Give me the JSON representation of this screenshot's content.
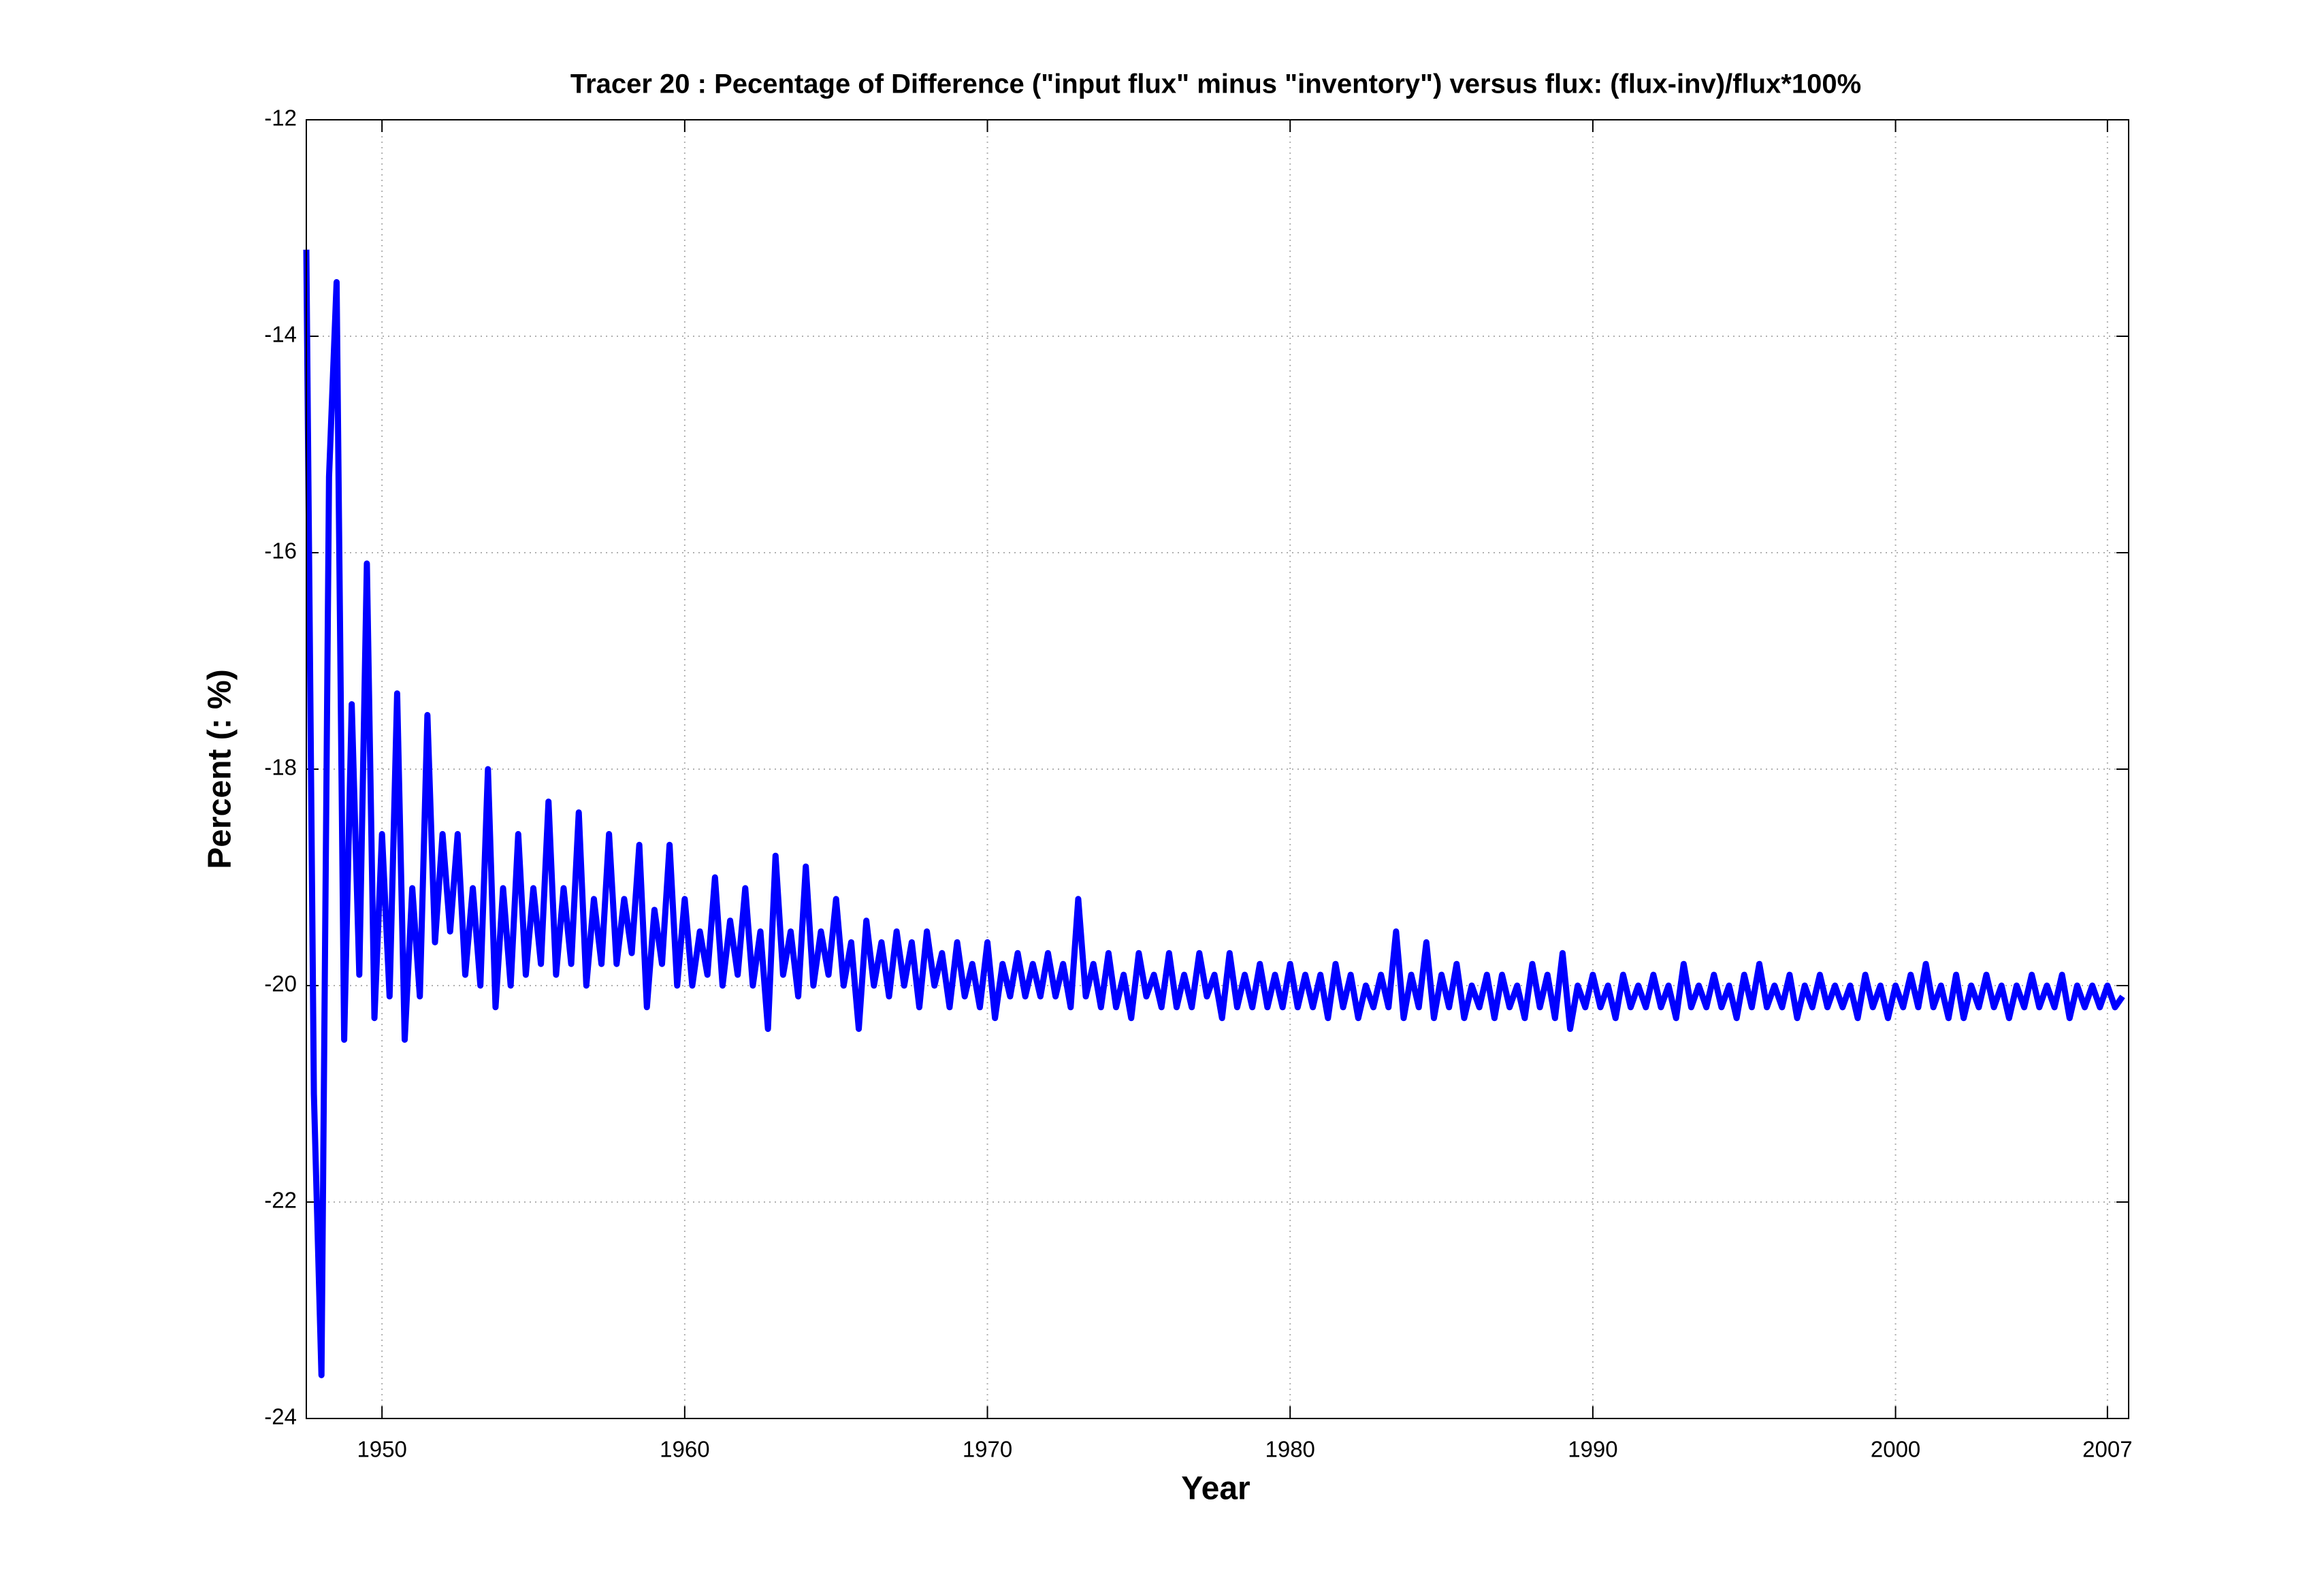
{
  "chart_data": {
    "type": "line",
    "title": "Tracer 20 : Pecentage of Difference (\"input flux\" minus \"inventory\") versus flux: (flux-inv)/flux*100%",
    "xlabel": "Year",
    "ylabel": "Percent (: %)",
    "xlim": [
      1947.5,
      2007.7
    ],
    "xticks": [
      1950,
      1960,
      1970,
      1980,
      1990,
      2000,
      2007
    ],
    "ylim": [
      -24,
      -12
    ],
    "yticks": [
      -24,
      -22,
      -20,
      -18,
      -16,
      -14,
      -12
    ],
    "grid": true,
    "x": [
      1947.5,
      1947.75,
      1948,
      1948.25,
      1948.5,
      1948.75,
      1949,
      1949.25,
      1949.5,
      1949.75,
      1950,
      1950.25,
      1950.5,
      1950.75,
      1951,
      1951.25,
      1951.5,
      1951.75,
      1952,
      1952.25,
      1952.5,
      1952.75,
      1953,
      1953.25,
      1953.5,
      1953.75,
      1954,
      1954.25,
      1954.5,
      1954.75,
      1955,
      1955.25,
      1955.5,
      1955.75,
      1956,
      1956.25,
      1956.5,
      1956.75,
      1957,
      1957.25,
      1957.5,
      1957.75,
      1958,
      1958.25,
      1958.5,
      1958.75,
      1959,
      1959.25,
      1959.5,
      1959.75,
      1960,
      1960.25,
      1960.5,
      1960.75,
      1961,
      1961.25,
      1961.5,
      1961.75,
      1962,
      1962.25,
      1962.5,
      1962.75,
      1963,
      1963.25,
      1963.5,
      1963.75,
      1964,
      1964.25,
      1964.5,
      1964.75,
      1965,
      1965.25,
      1965.5,
      1965.75,
      1966,
      1966.25,
      1966.5,
      1966.75,
      1967,
      1967.25,
      1967.5,
      1967.75,
      1968,
      1968.25,
      1968.5,
      1968.75,
      1969,
      1969.25,
      1969.5,
      1969.75,
      1970,
      1970.25,
      1970.5,
      1970.75,
      1971,
      1971.25,
      1971.5,
      1971.75,
      1972,
      1972.25,
      1972.5,
      1972.75,
      1973,
      1973.25,
      1973.5,
      1973.75,
      1974,
      1974.25,
      1974.5,
      1974.75,
      1975,
      1975.25,
      1975.5,
      1975.75,
      1976,
      1976.25,
      1976.5,
      1976.75,
      1977,
      1977.25,
      1977.5,
      1977.75,
      1978,
      1978.25,
      1978.5,
      1978.75,
      1979,
      1979.25,
      1979.5,
      1979.75,
      1980,
      1980.25,
      1980.5,
      1980.75,
      1981,
      1981.25,
      1981.5,
      1981.75,
      1982,
      1982.25,
      1982.5,
      1982.75,
      1983,
      1983.25,
      1983.5,
      1983.75,
      1984,
      1984.25,
      1984.5,
      1984.75,
      1985,
      1985.25,
      1985.5,
      1985.75,
      1986,
      1986.25,
      1986.5,
      1986.75,
      1987,
      1987.25,
      1987.5,
      1987.75,
      1988,
      1988.25,
      1988.5,
      1988.75,
      1989,
      1989.25,
      1989.5,
      1989.75,
      1990,
      1990.25,
      1990.5,
      1990.75,
      1991,
      1991.25,
      1991.5,
      1991.75,
      1992,
      1992.25,
      1992.5,
      1992.75,
      1993,
      1993.25,
      1993.5,
      1993.75,
      1994,
      1994.25,
      1994.5,
      1994.75,
      1995,
      1995.25,
      1995.5,
      1995.75,
      1996,
      1996.25,
      1996.5,
      1996.75,
      1997,
      1997.25,
      1997.5,
      1997.75,
      1998,
      1998.25,
      1998.5,
      1998.75,
      1999,
      1999.25,
      1999.5,
      1999.75,
      2000,
      2000.25,
      2000.5,
      2000.75,
      2001,
      2001.25,
      2001.5,
      2001.75,
      2002,
      2002.25,
      2002.5,
      2002.75,
      2003,
      2003.25,
      2003.5,
      2003.75,
      2004,
      2004.25,
      2004.5,
      2004.75,
      2005,
      2005.25,
      2005.5,
      2005.75,
      2006,
      2006.25,
      2006.5,
      2006.75,
      2007,
      2007.25,
      2007.5
    ],
    "series": [
      {
        "color": "#0000ff",
        "values": [
          -13.2,
          -21.0,
          -23.6,
          -15.3,
          -13.5,
          -20.5,
          -17.4,
          -19.9,
          -16.1,
          -20.3,
          -18.6,
          -20.1,
          -17.3,
          -20.5,
          -19.1,
          -20.1,
          -17.5,
          -19.6,
          -18.6,
          -19.5,
          -18.6,
          -19.9,
          -19.1,
          -20.0,
          -18.0,
          -20.2,
          -19.1,
          -20.0,
          -18.6,
          -19.9,
          -19.1,
          -19.8,
          -18.3,
          -19.9,
          -19.1,
          -19.8,
          -18.4,
          -20.0,
          -19.2,
          -19.8,
          -18.6,
          -19.8,
          -19.2,
          -19.7,
          -18.7,
          -20.2,
          -19.3,
          -19.8,
          -18.7,
          -20.0,
          -19.2,
          -20.0,
          -19.5,
          -19.9,
          -19.0,
          -20.0,
          -19.4,
          -19.9,
          -19.1,
          -20.0,
          -19.5,
          -20.4,
          -18.8,
          -19.9,
          -19.5,
          -20.1,
          -18.9,
          -20.0,
          -19.5,
          -19.9,
          -19.2,
          -20.0,
          -19.6,
          -20.4,
          -19.4,
          -20.0,
          -19.6,
          -20.1,
          -19.5,
          -20.0,
          -19.6,
          -20.2,
          -19.5,
          -20.0,
          -19.7,
          -20.2,
          -19.6,
          -20.1,
          -19.8,
          -20.2,
          -19.6,
          -20.3,
          -19.8,
          -20.1,
          -19.7,
          -20.1,
          -19.8,
          -20.1,
          -19.7,
          -20.1,
          -19.8,
          -20.2,
          -19.2,
          -20.1,
          -19.8,
          -20.2,
          -19.7,
          -20.2,
          -19.9,
          -20.3,
          -19.7,
          -20.1,
          -19.9,
          -20.2,
          -19.7,
          -20.2,
          -19.9,
          -20.2,
          -19.7,
          -20.1,
          -19.9,
          -20.3,
          -19.7,
          -20.2,
          -19.9,
          -20.2,
          -19.8,
          -20.2,
          -19.9,
          -20.2,
          -19.8,
          -20.2,
          -19.9,
          -20.2,
          -19.9,
          -20.3,
          -19.8,
          -20.2,
          -19.9,
          -20.3,
          -20.0,
          -20.2,
          -19.9,
          -20.2,
          -19.5,
          -20.3,
          -19.9,
          -20.2,
          -19.6,
          -20.3,
          -19.9,
          -20.2,
          -19.8,
          -20.3,
          -20.0,
          -20.2,
          -19.9,
          -20.3,
          -19.9,
          -20.2,
          -20.0,
          -20.3,
          -19.8,
          -20.2,
          -19.9,
          -20.3,
          -19.7,
          -20.4,
          -20.0,
          -20.2,
          -19.9,
          -20.2,
          -20.0,
          -20.3,
          -19.9,
          -20.2,
          -20.0,
          -20.2,
          -19.9,
          -20.2,
          -20.0,
          -20.3,
          -19.8,
          -20.2,
          -20.0,
          -20.2,
          -19.9,
          -20.2,
          -20.0,
          -20.3,
          -19.9,
          -20.2,
          -19.8,
          -20.2,
          -20.0,
          -20.2,
          -19.9,
          -20.3,
          -20.0,
          -20.2,
          -19.9,
          -20.2,
          -20.0,
          -20.2,
          -20.0,
          -20.3,
          -19.9,
          -20.2,
          -20.0,
          -20.3,
          -20.0,
          -20.2,
          -19.9,
          -20.2,
          -19.8,
          -20.2,
          -20.0,
          -20.3,
          -19.9,
          -20.3,
          -20.0,
          -20.2,
          -19.9,
          -20.2,
          -20.0,
          -20.3,
          -20.0,
          -20.2,
          -19.9,
          -20.2,
          -20.0,
          -20.2,
          -19.9,
          -20.3,
          -20.0,
          -20.2,
          -20.0,
          -20.2,
          -20.0,
          -20.2,
          -20.1
        ]
      }
    ]
  }
}
